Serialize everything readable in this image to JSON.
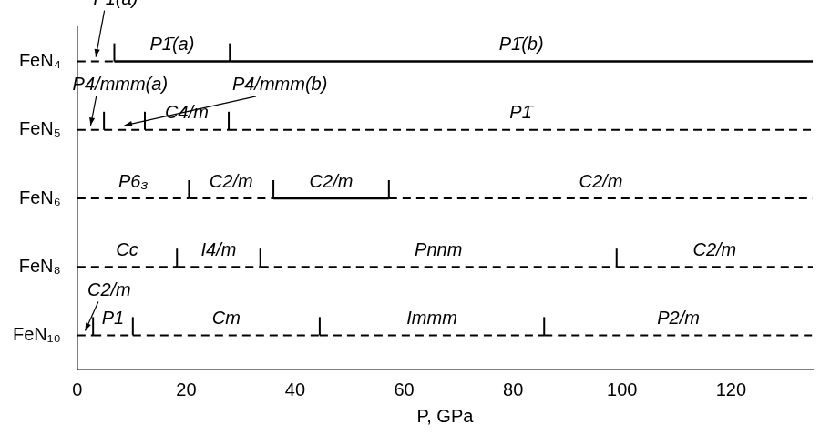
{
  "chart_data": {
    "type": "phase_diagram",
    "xlabel": "P, GPa",
    "xlim": [
      0,
      135
    ],
    "xticks": [
      0,
      20,
      40,
      60,
      80,
      100,
      120
    ],
    "grid": false,
    "rows": [
      {
        "name": "FeN₄",
        "phases": [
          {
            "name": "P1̄(a)",
            "from": 0,
            "to": 6.8,
            "line_style": "dashed"
          },
          {
            "name": "P1̄(a)",
            "from": 6.8,
            "to": 28,
            "line_style": "solid"
          },
          {
            "name": "P1̄(b)",
            "from": 28,
            "to": 135,
            "line_style": "solid"
          }
        ]
      },
      {
        "name": "FeN₅",
        "phases": [
          {
            "name": "P4/mmm(a)",
            "from": 0,
            "to": 4.9,
            "line_style": "dashed"
          },
          {
            "name": "P4/mmm(b)",
            "from": 4.9,
            "to": 12.4,
            "line_style": "dashed"
          },
          {
            "name": "C4/m",
            "from": 12.4,
            "to": 27.8,
            "line_style": "dashed"
          },
          {
            "name": "P1̄",
            "from": 27.8,
            "to": 135,
            "line_style": "dashed"
          }
        ]
      },
      {
        "name": "FeN₆",
        "phases": [
          {
            "name": "P6₃",
            "from": 0,
            "to": 20.5,
            "line_style": "dashed"
          },
          {
            "name": "C2/m",
            "from": 20.5,
            "to": 36,
            "line_style": "dashed"
          },
          {
            "name": "C2/m",
            "from": 36,
            "to": 57.2,
            "line_style": "solid"
          },
          {
            "name": "C2/m",
            "from": 57.2,
            "to": 135,
            "line_style": "dashed"
          }
        ]
      },
      {
        "name": "FeN₈",
        "phases": [
          {
            "name": "Cc",
            "from": 0,
            "to": 18.3,
            "line_style": "dashed"
          },
          {
            "name": "I4/m",
            "from": 18.3,
            "to": 33.6,
            "line_style": "dashed"
          },
          {
            "name": "Pnnm",
            "from": 33.6,
            "to": 99,
            "line_style": "dashed"
          },
          {
            "name": "C2/m",
            "from": 99,
            "to": 135,
            "line_style": "dashed"
          }
        ]
      },
      {
        "name": "FeN₁₀",
        "phases": [
          {
            "name": "C2/m",
            "from": 0,
            "to": 2.9,
            "line_style": "dashed"
          },
          {
            "name": "P1",
            "from": 2.9,
            "to": 10.2,
            "line_style": "dashed"
          },
          {
            "name": "Cm",
            "from": 10.2,
            "to": 44.5,
            "line_style": "dashed"
          },
          {
            "name": "Immm",
            "from": 44.5,
            "to": 85.7,
            "line_style": "dashed"
          },
          {
            "name": "P2/m",
            "from": 85.7,
            "to": 135,
            "line_style": "dashed"
          }
        ]
      }
    ]
  }
}
